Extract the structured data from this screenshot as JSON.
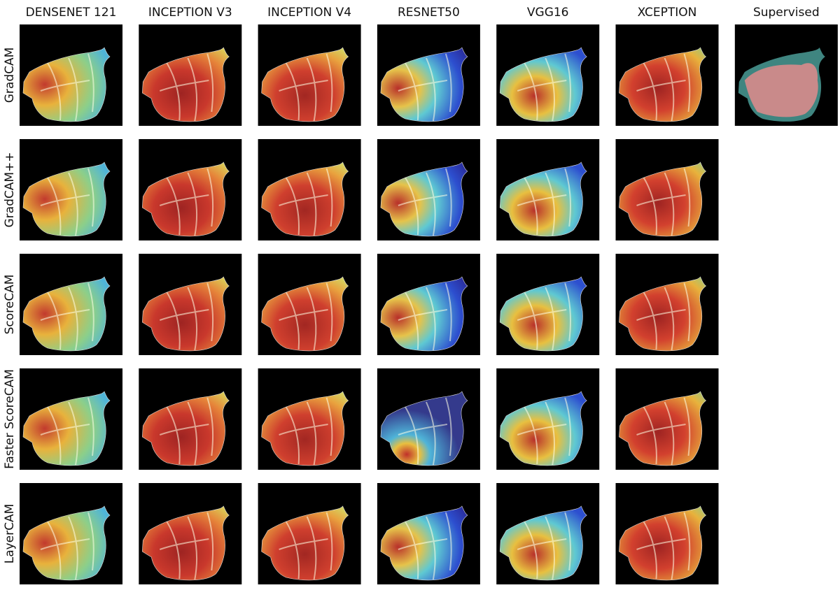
{
  "figure": {
    "columns": [
      "DENSENET 121",
      "INCEPTION V3",
      "INCEPTION V4",
      "RESNET50",
      "VGG16",
      "XCEPTION",
      "Supervised"
    ],
    "rows": [
      "GradCAM",
      "GradCAM++",
      "ScoreCAM",
      "Faster ScoreCAM",
      "LayerCAM"
    ]
  }
}
